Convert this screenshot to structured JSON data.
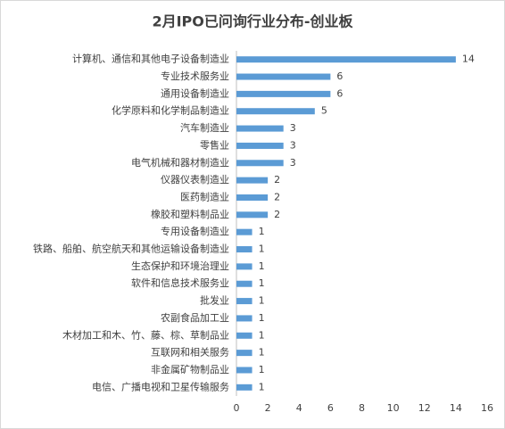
{
  "chart_data": {
    "type": "bar",
    "orientation": "horizontal",
    "title": "2月IPO已问询行业分布-创业板",
    "categories": [
      "计算机、通信和其他电子设备制造业",
      "专业技术服务业",
      "通用设备制造业",
      "化学原料和化学制品制造业",
      "汽车制造业",
      "零售业",
      "电气机械和器材制造业",
      "仪器仪表制造业",
      "医药制造业",
      "橡胶和塑料制品业",
      "专用设备制造业",
      "铁路、船舶、航空航天和其他运输设备制造业",
      "生态保护和环境治理业",
      "软件和信息技术服务业",
      "批发业",
      "农副食品加工业",
      "木材加工和木、竹、藤、棕、草制品业",
      "互联网和相关服务",
      "非金属矿物制品业",
      "电信、广播电视和卫星传输服务"
    ],
    "values": [
      14,
      6,
      6,
      5,
      3,
      3,
      3,
      2,
      2,
      2,
      1,
      1,
      1,
      1,
      1,
      1,
      1,
      1,
      1,
      1
    ],
    "color": "#5b9bd5",
    "xlim": [
      0,
      16
    ],
    "xticks": [
      0,
      2,
      4,
      6,
      8,
      10,
      12,
      14,
      16
    ],
    "grid": false
  }
}
